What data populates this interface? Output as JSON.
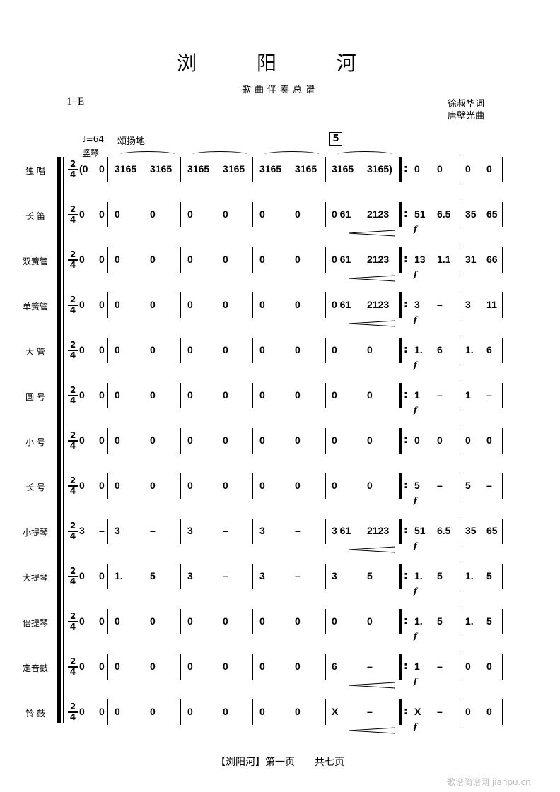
{
  "header": {
    "title": "浏 阳 河",
    "subtitle": "歌曲伴奏总谱",
    "key": "1=E",
    "lyricist": "徐叔华词",
    "composer": "唐壁光曲",
    "tempo": "♩=64",
    "expression": "颂扬地",
    "harp_label": "竖琴",
    "rehearsal_mark": "5",
    "time_signature": {
      "top": "2",
      "bottom": "4"
    }
  },
  "score": {
    "instruments": [
      {
        "name": "独  唱",
        "measures": [
          [
            "(0",
            "0"
          ],
          [
            "3165",
            "3165"
          ],
          [
            "3165",
            "3165"
          ],
          [
            "3165",
            "3165"
          ],
          [
            "3165",
            "3165)"
          ],
          [
            "0",
            "0"
          ],
          [
            "0",
            "0"
          ]
        ],
        "dynamic": false,
        "cresc": false
      },
      {
        "name": "长  笛",
        "measures": [
          [
            "0",
            "0"
          ],
          [
            "0",
            "0"
          ],
          [
            "0",
            "0"
          ],
          [
            "0",
            "0"
          ],
          [
            "0  61",
            "2123"
          ],
          [
            "51",
            "6.5"
          ],
          [
            "35",
            "65"
          ]
        ],
        "dynamic": true,
        "cresc": true
      },
      {
        "name": "双簧管",
        "measures": [
          [
            "0",
            "0"
          ],
          [
            "0",
            "0"
          ],
          [
            "0",
            "0"
          ],
          [
            "0",
            "0"
          ],
          [
            "0  61",
            "2123"
          ],
          [
            "13",
            "1.1"
          ],
          [
            "31",
            "66"
          ]
        ],
        "dynamic": true,
        "cresc": true
      },
      {
        "name": "单簧管",
        "measures": [
          [
            "0",
            "0"
          ],
          [
            "0",
            "0"
          ],
          [
            "0",
            "0"
          ],
          [
            "0",
            "0"
          ],
          [
            "0  61",
            "2123"
          ],
          [
            "3",
            "–"
          ],
          [
            "3",
            "11"
          ]
        ],
        "dynamic": true,
        "cresc": true
      },
      {
        "name": "大  管",
        "measures": [
          [
            "0",
            "0"
          ],
          [
            "0",
            "0"
          ],
          [
            "0",
            "0"
          ],
          [
            "0",
            "0"
          ],
          [
            "0",
            "0"
          ],
          [
            "1.",
            "6"
          ],
          [
            "1.",
            "6"
          ]
        ],
        "dynamic": true,
        "cresc": false
      },
      {
        "name": "圆  号",
        "measures": [
          [
            "0",
            "0"
          ],
          [
            "0",
            "0"
          ],
          [
            "0",
            "0"
          ],
          [
            "0",
            "0"
          ],
          [
            "0",
            "0"
          ],
          [
            "1",
            "–"
          ],
          [
            "1",
            "–"
          ]
        ],
        "dynamic": true,
        "cresc": false
      },
      {
        "name": "小  号",
        "measures": [
          [
            "0",
            "0"
          ],
          [
            "0",
            "0"
          ],
          [
            "0",
            "0"
          ],
          [
            "0",
            "0"
          ],
          [
            "0",
            "0"
          ],
          [
            "0",
            "0"
          ],
          [
            "0",
            "0"
          ]
        ],
        "dynamic": false,
        "cresc": false
      },
      {
        "name": "长  号",
        "measures": [
          [
            "0",
            "0"
          ],
          [
            "0",
            "0"
          ],
          [
            "0",
            "0"
          ],
          [
            "0",
            "0"
          ],
          [
            "0",
            "0"
          ],
          [
            "5",
            "–"
          ],
          [
            "5",
            "–"
          ]
        ],
        "dynamic": true,
        "cresc": false
      },
      {
        "name": "小提琴",
        "measures": [
          [
            "3",
            "–"
          ],
          [
            "3",
            "–"
          ],
          [
            "3",
            "–"
          ],
          [
            "3",
            "–"
          ],
          [
            "3  61",
            "2123"
          ],
          [
            "51",
            "6.5"
          ],
          [
            "35",
            "65"
          ]
        ],
        "dynamic": true,
        "cresc": true
      },
      {
        "name": "大提琴",
        "measures": [
          [
            "0",
            "0"
          ],
          [
            "1.",
            "5"
          ],
          [
            "3",
            "–"
          ],
          [
            "3",
            "–"
          ],
          [
            "3",
            "5"
          ],
          [
            "1.",
            "5"
          ],
          [
            "1.",
            "5"
          ]
        ],
        "dynamic": true,
        "cresc": false
      },
      {
        "name": "倍提琴",
        "measures": [
          [
            "0",
            "0"
          ],
          [
            "0",
            "0"
          ],
          [
            "0",
            "0"
          ],
          [
            "0",
            "0"
          ],
          [
            "0",
            "0"
          ],
          [
            "1.",
            "5"
          ],
          [
            "1.",
            "5"
          ]
        ],
        "dynamic": true,
        "cresc": false
      },
      {
        "name": "定音鼓",
        "measures": [
          [
            "0",
            "0"
          ],
          [
            "0",
            "0"
          ],
          [
            "0",
            "0"
          ],
          [
            "0",
            "0"
          ],
          [
            "6",
            "–"
          ],
          [
            "1",
            "–"
          ],
          [
            "0",
            "0"
          ]
        ],
        "dynamic": true,
        "cresc": true
      },
      {
        "name": "铃  鼓",
        "measures": [
          [
            "0",
            "0"
          ],
          [
            "0",
            "0"
          ],
          [
            "0",
            "0"
          ],
          [
            "0",
            "0"
          ],
          [
            "X",
            "–"
          ],
          [
            "X",
            "–"
          ],
          [
            "0",
            "0"
          ]
        ],
        "dynamic": true,
        "cresc": true
      }
    ],
    "dynamic_mark": "f",
    "repeat_sign": ":"
  },
  "footer": {
    "page_label": "【浏阳河】第一页　　共七页"
  },
  "watermark": "歌谱简谱网 jianpu.cn"
}
